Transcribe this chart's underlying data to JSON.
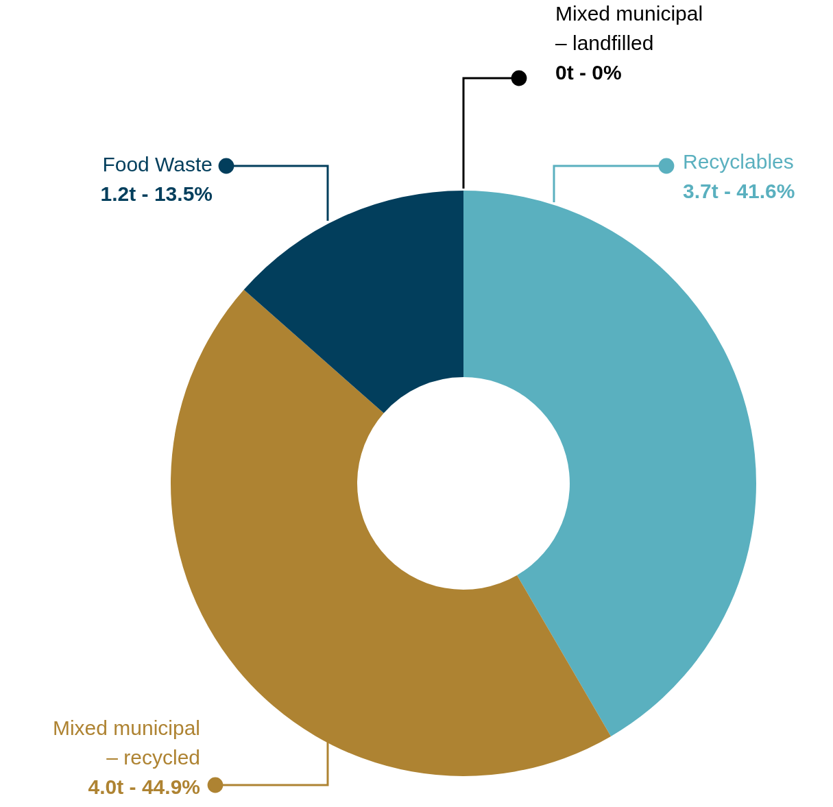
{
  "chart_data": {
    "type": "donut",
    "categories": [
      "Recyclables",
      "Mixed municipal\n– recycled",
      "Food Waste",
      "Mixed municipal\n– landfilled"
    ],
    "values": [
      41.6,
      44.9,
      13.5,
      0
    ],
    "annotations": [
      "3.7t - 41.6%",
      "4.0t - 44.9%",
      "1.2t - 13.5%",
      "0t - 0%"
    ],
    "colors": [
      "#5ab0bf",
      "#ae8332",
      "#023e5c",
      "#000000"
    ]
  }
}
